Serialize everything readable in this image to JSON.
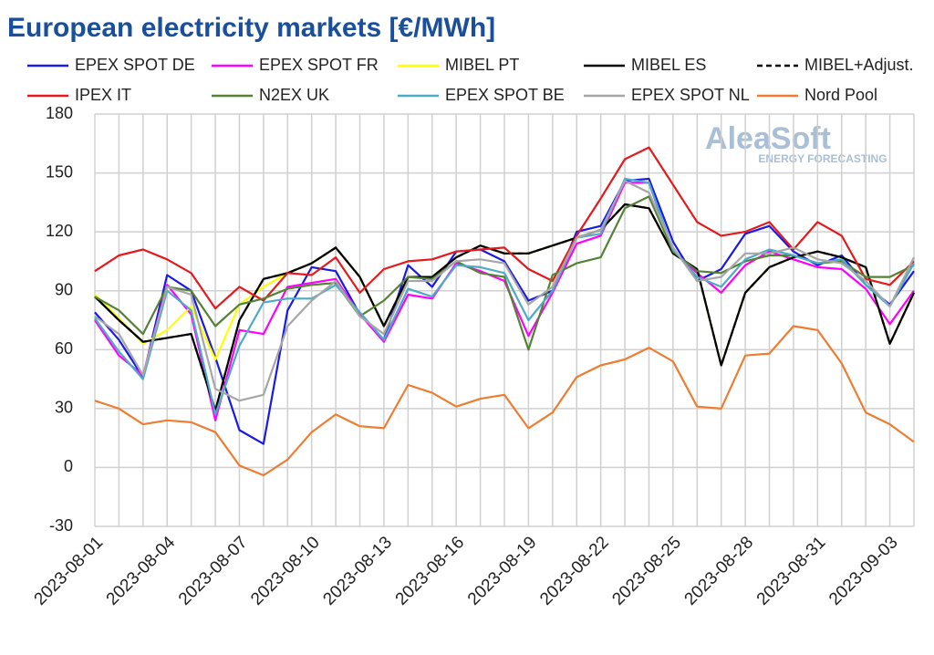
{
  "chart_data": {
    "type": "line",
    "title": "European electricity markets [€/MWh]",
    "logo": {
      "name": "AleaSoft",
      "tagline": "ENERGY FORECASTING"
    },
    "categories": [
      "2023-08-01",
      null,
      null,
      "2023-08-04",
      null,
      null,
      "2023-08-07",
      null,
      null,
      "2023-08-10",
      null,
      null,
      "2023-08-13",
      null,
      null,
      "2023-08-16",
      null,
      null,
      "2023-08-19",
      null,
      null,
      "2023-08-22",
      null,
      null,
      "2023-08-25",
      null,
      null,
      "2023-08-28",
      null,
      null,
      "2023-08-31",
      null,
      null,
      "2023-09-03",
      null
    ],
    "ylim": [
      -30,
      180
    ],
    "yticks": [
      -30,
      0,
      30,
      60,
      90,
      120,
      150,
      180
    ],
    "grid": true,
    "series": [
      {
        "name": "EPEX SPOT DE",
        "color": "#1a1ae6",
        "values": [
          79,
          65,
          46,
          98,
          90,
          56,
          19,
          12,
          80,
          102,
          100,
          78,
          65,
          103,
          92,
          110,
          111,
          105,
          85,
          90,
          120,
          123,
          146,
          147,
          115,
          95,
          101,
          119,
          123,
          110,
          103,
          108,
          93,
          83,
          100
        ]
      },
      {
        "name": "EPEX SPOT FR",
        "color": "#ff00ff",
        "values": [
          75,
          57,
          47,
          93,
          78,
          24,
          70,
          68,
          92,
          94,
          96,
          78,
          64,
          88,
          86,
          104,
          100,
          95,
          67,
          89,
          114,
          118,
          145,
          145,
          110,
          99,
          89,
          103,
          110,
          106,
          102,
          101,
          91,
          73,
          90
        ]
      },
      {
        "name": "MIBEL PT",
        "color": "#ffff00",
        "values": [
          88,
          76,
          63,
          70,
          82,
          55,
          83,
          92,
          99,
          104,
          112,
          97,
          72,
          97,
          97,
          107,
          113,
          109,
          109,
          113,
          117,
          121,
          134,
          132,
          109,
          101,
          52,
          89,
          102,
          107,
          110,
          107,
          102,
          63,
          89
        ]
      },
      {
        "name": "MIBEL ES",
        "color": "#000000",
        "values": [
          87,
          75,
          64,
          66,
          68,
          29,
          75,
          96,
          99,
          104,
          112,
          97,
          72,
          97,
          97,
          107,
          113,
          109,
          109,
          113,
          117,
          121,
          134,
          132,
          109,
          101,
          52,
          89,
          102,
          107,
          110,
          107,
          102,
          63,
          89
        ]
      },
      {
        "name": "MIBEL+Adjust.",
        "color": "#000000",
        "dashed": true,
        "values": [
          87,
          75,
          64,
          66,
          68,
          29,
          75,
          96,
          99,
          104,
          112,
          97,
          72,
          97,
          97,
          107,
          113,
          109,
          109,
          113,
          117,
          121,
          134,
          132,
          109,
          101,
          52,
          89,
          102,
          107,
          110,
          107,
          102,
          63,
          89
        ]
      },
      {
        "name": "IPEX IT",
        "color": "#e41a1c",
        "values": [
          100,
          108,
          111,
          106,
          99,
          81,
          92,
          85,
          99,
          98,
          107,
          89,
          101,
          105,
          106,
          110,
          111,
          112,
          101,
          95,
          118,
          137,
          157,
          163,
          144,
          125,
          118,
          120,
          125,
          111,
          125,
          118,
          96,
          93,
          105
        ]
      },
      {
        "name": "N2EX UK",
        "color": "#548235",
        "values": [
          87,
          80,
          68,
          92,
          90,
          72,
          83,
          86,
          91,
          93,
          94,
          77,
          85,
          97,
          96,
          105,
          99,
          97,
          60,
          98,
          104,
          107,
          132,
          138,
          110,
          100,
          99,
          105,
          108,
          108,
          104,
          105,
          97,
          97,
          103
        ]
      },
      {
        "name": "EPEX SPOT BE",
        "color": "#4bacc6",
        "values": [
          76,
          59,
          45,
          90,
          80,
          27,
          62,
          84,
          86,
          86,
          93,
          79,
          65,
          91,
          87,
          103,
          102,
          99,
          75,
          90,
          117,
          119,
          147,
          145,
          111,
          97,
          92,
          106,
          111,
          108,
          104,
          106,
          93,
          82,
          104
        ]
      },
      {
        "name": "EPEX SPOT NL",
        "color": "#a6a6a6",
        "values": [
          77,
          68,
          47,
          92,
          88,
          40,
          34,
          37,
          72,
          85,
          95,
          77,
          68,
          95,
          95,
          105,
          106,
          104,
          83,
          92,
          117,
          121,
          146,
          140,
          112,
          95,
          97,
          109,
          109,
          112,
          106,
          104,
          95,
          82,
          107
        ]
      },
      {
        "name": "Nord Pool",
        "color": "#ed7d31",
        "values": [
          34,
          30,
          22,
          24,
          23,
          18,
          1,
          -4,
          4,
          18,
          27,
          21,
          20,
          42,
          38,
          31,
          35,
          37,
          20,
          28,
          46,
          52,
          55,
          61,
          54,
          31,
          30,
          57,
          58,
          72,
          70,
          53,
          28,
          22,
          13
        ]
      }
    ]
  }
}
